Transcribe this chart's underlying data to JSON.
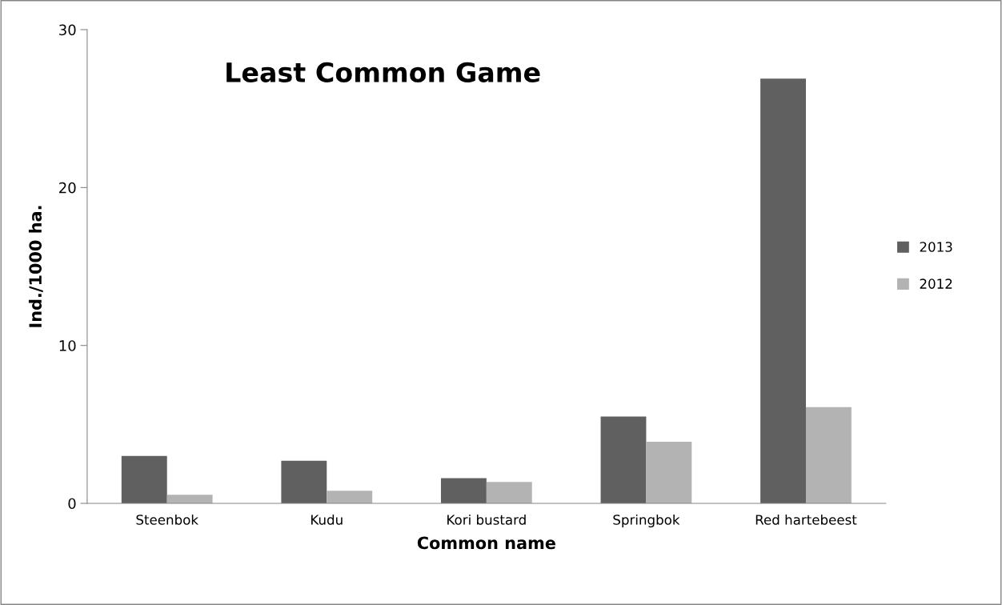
{
  "chart_data": {
    "type": "bar",
    "title": "Least Common Game",
    "xlabel": "Common name",
    "ylabel": "Ind./1000 ha.",
    "categories": [
      "Steenbok",
      "Kudu",
      "Kori bustard",
      "Springbok",
      "Red hartebeest"
    ],
    "series": [
      {
        "name": "2013",
        "color": "#606060",
        "values": [
          3.0,
          2.7,
          1.6,
          5.5,
          26.9
        ]
      },
      {
        "name": "2012",
        "color": "#b3b3b3",
        "values": [
          0.55,
          0.8,
          1.35,
          3.9,
          6.1
        ]
      }
    ],
    "ylim": [
      0,
      30
    ],
    "yticks": [
      0,
      10,
      20,
      30
    ],
    "grid": false,
    "legend": "right"
  }
}
